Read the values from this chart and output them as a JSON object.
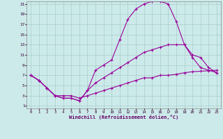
{
  "xlabel": "Windchill (Refroidissement éolien,°C)",
  "bg_color": "#cceaea",
  "grid_color": "#aacccc",
  "line_color": "#990099",
  "xmin": 0,
  "xmax": 23,
  "ymin": 1,
  "ymax": 21,
  "yticks": [
    1,
    3,
    5,
    7,
    9,
    11,
    13,
    15,
    17,
    19,
    21
  ],
  "xticks": [
    0,
    1,
    2,
    3,
    4,
    5,
    6,
    7,
    8,
    9,
    10,
    11,
    12,
    13,
    14,
    15,
    16,
    17,
    18,
    19,
    20,
    21,
    22,
    23
  ],
  "line1_x": [
    0,
    1,
    2,
    3,
    4,
    5,
    6,
    7,
    8,
    9,
    10,
    11,
    12,
    13,
    14,
    15,
    16,
    17,
    18,
    19,
    20,
    21,
    22,
    23
  ],
  "line1_y": [
    7,
    6,
    4.5,
    3,
    2.5,
    2.5,
    2,
    4,
    8,
    9,
    10,
    14,
    18,
    20,
    21,
    21.5,
    21.5,
    21,
    17.5,
    13,
    10.5,
    8.5,
    8,
    7.5
  ],
  "line2_x": [
    0,
    1,
    2,
    3,
    4,
    5,
    6,
    7,
    8,
    9,
    10,
    11,
    12,
    13,
    14,
    15,
    16,
    17,
    18,
    19,
    20,
    21,
    22,
    23
  ],
  "line2_y": [
    7,
    6,
    4.5,
    3,
    2.5,
    2.5,
    2,
    4,
    5.5,
    6.5,
    7.5,
    8.5,
    9.5,
    10.5,
    11.5,
    12,
    12.5,
    13,
    13,
    13,
    11,
    10.5,
    8.5,
    7.5
  ],
  "line3_x": [
    0,
    1,
    2,
    3,
    4,
    5,
    6,
    7,
    8,
    9,
    10,
    11,
    12,
    13,
    14,
    15,
    16,
    17,
    18,
    19,
    20,
    21,
    22,
    23
  ],
  "line3_y": [
    7,
    6,
    4.5,
    3,
    3,
    3,
    2.5,
    3,
    3.5,
    4,
    4.5,
    5,
    5.5,
    6,
    6.5,
    6.5,
    7,
    7,
    7.2,
    7.5,
    7.7,
    7.8,
    7.9,
    8
  ]
}
